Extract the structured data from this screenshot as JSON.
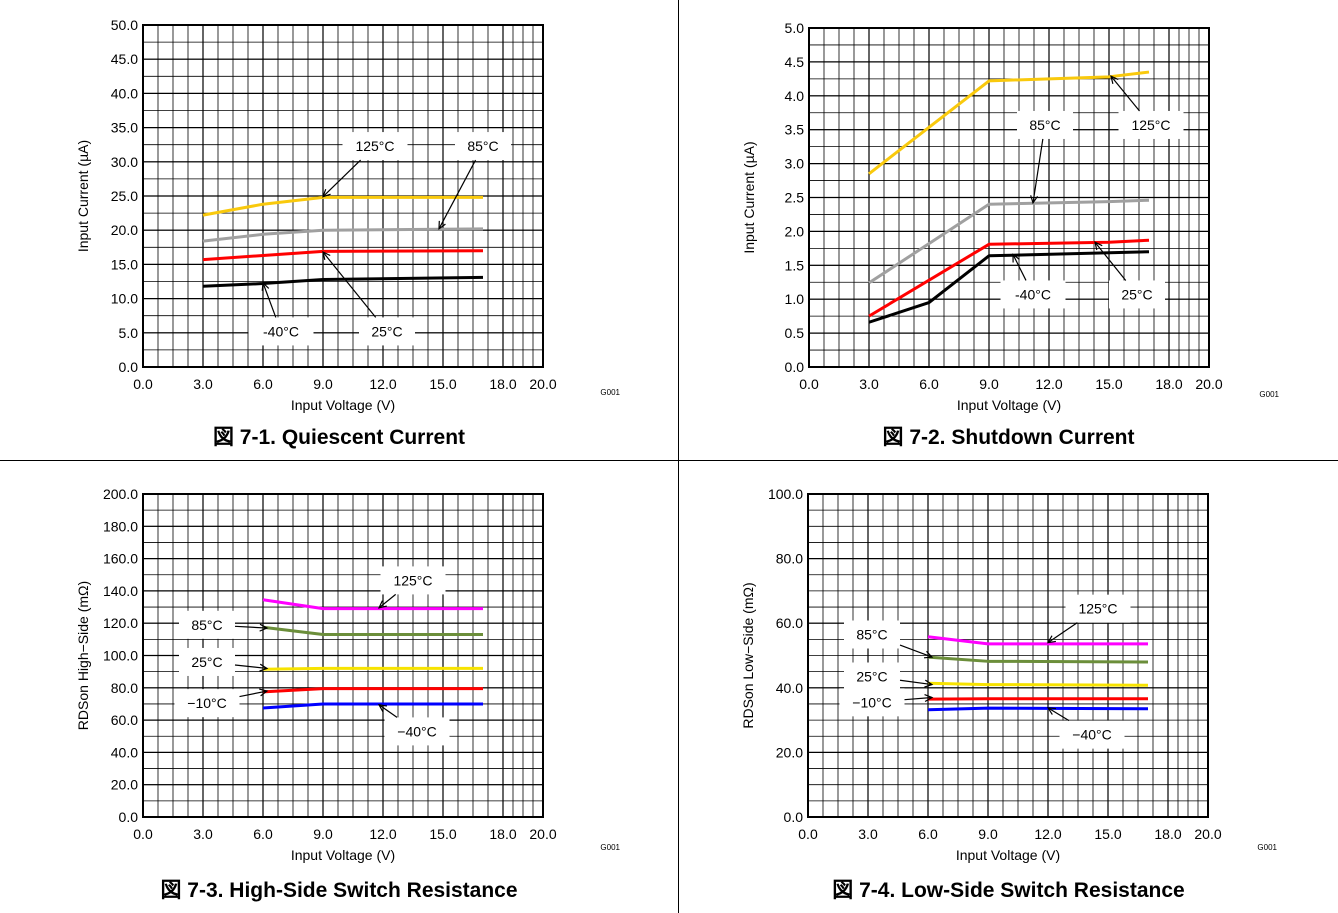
{
  "charts": [
    {
      "caption": "図 7-1. Quiescent Current",
      "chart_data": {
        "type": "line",
        "xlabel": "Input Voltage (V)",
        "ylabel": "Input Current (µA)",
        "code": "G001",
        "xlim": [
          0,
          20
        ],
        "ylim": [
          0,
          50
        ],
        "xticks": [
          "0.0",
          "3.0",
          "6.0",
          "9.0",
          "12.0",
          "15.0",
          "18.0",
          "20.0"
        ],
        "xtick_values": [
          0,
          3,
          6,
          9,
          12,
          15,
          18,
          20
        ],
        "yticks": [
          "0.0",
          "5.0",
          "10.0",
          "15.0",
          "20.0",
          "25.0",
          "30.0",
          "35.0",
          "40.0",
          "45.0",
          "50.0"
        ],
        "ytick_values": [
          0,
          5,
          10,
          15,
          20,
          25,
          30,
          35,
          40,
          45,
          50
        ],
        "grid": true,
        "series": [
          {
            "name": "125°C",
            "color": "#f9c90c",
            "x": [
              3,
              6,
              9,
              17
            ],
            "y": [
              22.2,
              23.8,
              24.8,
              24.8
            ]
          },
          {
            "name": "85°C",
            "color": "#a0a0a0",
            "x": [
              3,
              6,
              9,
              17
            ],
            "y": [
              18.4,
              19.4,
              20.0,
              20.2
            ]
          },
          {
            "name": "25°C",
            "color": "#ff0000",
            "x": [
              3,
              6,
              9,
              17
            ],
            "y": [
              15.7,
              16.3,
              16.9,
              17.0
            ]
          },
          {
            "name": "-40°C",
            "color": "#000000",
            "x": [
              3,
              6,
              9,
              17
            ],
            "y": [
              11.8,
              12.2,
              12.8,
              13.1
            ]
          }
        ],
        "annotations": [
          {
            "text": "125°C",
            "label_x": 11.6,
            "label_y": 32.3,
            "arrow_x": 9.0,
            "arrow_y": 24.9
          },
          {
            "text": "85°C",
            "label_x": 17.0,
            "label_y": 32.3,
            "arrow_x": 14.8,
            "arrow_y": 20.2
          },
          {
            "text": "-40°C",
            "label_x": 6.9,
            "label_y": 5.2,
            "arrow_x": 6.0,
            "arrow_y": 12.3
          },
          {
            "text": "25°C",
            "label_x": 12.2,
            "label_y": 5.2,
            "arrow_x": 9.0,
            "arrow_y": 16.8
          }
        ]
      }
    },
    {
      "caption": "図 7-2. Shutdown Current",
      "chart_data": {
        "type": "line",
        "xlabel": "Input Voltage (V)",
        "ylabel": "Input Current (µA)",
        "code": "G001",
        "xlim": [
          0,
          20
        ],
        "ylim": [
          0,
          5
        ],
        "xticks": [
          "0.0",
          "3.0",
          "6.0",
          "9.0",
          "12.0",
          "15.0",
          "18.0",
          "20.0"
        ],
        "xtick_values": [
          0,
          3,
          6,
          9,
          12,
          15,
          18,
          20
        ],
        "yticks": [
          "0.0",
          "0.5",
          "1.0",
          "1.5",
          "2.0",
          "2.5",
          "3.0",
          "3.5",
          "4.0",
          "4.5",
          "5.0"
        ],
        "ytick_values": [
          0,
          0.5,
          1,
          1.5,
          2,
          2.5,
          3,
          3.5,
          4,
          4.5,
          5
        ],
        "grid": true,
        "series": [
          {
            "name": "125°C",
            "color": "#f9c90c",
            "x": [
              3,
              9,
              15,
              17
            ],
            "y": [
              2.85,
              4.22,
              4.28,
              4.35
            ]
          },
          {
            "name": "85°C",
            "color": "#a0a0a0",
            "x": [
              3,
              9,
              15,
              17
            ],
            "y": [
              1.24,
              2.4,
              2.44,
              2.46
            ]
          },
          {
            "name": "25°C",
            "color": "#ff0000",
            "x": [
              3,
              9,
              15,
              17
            ],
            "y": [
              0.75,
              1.81,
              1.84,
              1.87
            ]
          },
          {
            "name": "-40°C",
            "color": "#000000",
            "x": [
              3,
              6,
              9,
              17
            ],
            "y": [
              0.66,
              0.95,
              1.64,
              1.7
            ]
          }
        ],
        "annotations": [
          {
            "text": "85°C",
            "label_x": 11.8,
            "label_y": 3.57,
            "arrow_x": 11.2,
            "arrow_y": 2.42
          },
          {
            "text": "125°C",
            "label_x": 17.1,
            "label_y": 3.57,
            "arrow_x": 15.1,
            "arrow_y": 4.29
          },
          {
            "text": "-40°C",
            "label_x": 11.2,
            "label_y": 1.07,
            "arrow_x": 10.2,
            "arrow_y": 1.66
          },
          {
            "text": "25°C",
            "label_x": 16.4,
            "label_y": 1.07,
            "arrow_x": 14.3,
            "arrow_y": 1.84
          }
        ]
      }
    },
    {
      "caption": "図 7-3. High-Side Switch Resistance",
      "chart_data": {
        "type": "line",
        "xlabel": "Input Voltage (V)",
        "ylabel": "RDSon High−Side (mΩ)",
        "code": "G001",
        "xlim": [
          0,
          20
        ],
        "ylim": [
          0,
          200
        ],
        "xticks": [
          "0.0",
          "3.0",
          "6.0",
          "9.0",
          "12.0",
          "15.0",
          "18.0",
          "20.0"
        ],
        "xtick_values": [
          0,
          3,
          6,
          9,
          12,
          15,
          18,
          20
        ],
        "yticks": [
          "0.0",
          "20.0",
          "40.0",
          "60.0",
          "80.0",
          "100.0",
          "120.0",
          "140.0",
          "160.0",
          "180.0",
          "200.0"
        ],
        "ytick_values": [
          0,
          20,
          40,
          60,
          80,
          100,
          120,
          140,
          160,
          180,
          200
        ],
        "grid": true,
        "series": [
          {
            "name": "125°C",
            "color": "#ff00ff",
            "x": [
              6,
              9,
              17
            ],
            "y": [
              134.5,
              129,
              129
            ]
          },
          {
            "name": "85°C",
            "color": "#6b8e3a",
            "x": [
              6,
              9,
              17
            ],
            "y": [
              117.5,
              113,
              113
            ]
          },
          {
            "name": "25°C",
            "color": "#f7e300",
            "x": [
              6,
              9,
              17
            ],
            "y": [
              91.5,
              92,
              92
            ]
          },
          {
            "name": "−10°C",
            "color": "#ff0000",
            "x": [
              6,
              9,
              17
            ],
            "y": [
              77.5,
              79.5,
              79.5
            ]
          },
          {
            "name": "−40°C",
            "color": "#0000ff",
            "x": [
              6,
              9,
              17
            ],
            "y": [
              67.5,
              70,
              70
            ]
          }
        ],
        "annotations": [
          {
            "text": "125°C",
            "label_x": 13.5,
            "label_y": 146.5,
            "arrow_x": 11.8,
            "arrow_y": 129.5
          },
          {
            "text": "85°C",
            "label_x": 3.2,
            "label_y": 119,
            "arrow_x": 6.2,
            "arrow_y": 117
          },
          {
            "text": "25°C",
            "label_x": 3.2,
            "label_y": 96,
            "arrow_x": 6.2,
            "arrow_y": 92
          },
          {
            "text": "−10°C",
            "label_x": 3.2,
            "label_y": 70.5,
            "arrow_x": 6.2,
            "arrow_y": 78
          },
          {
            "text": "−40°C",
            "label_x": 13.7,
            "label_y": 53,
            "arrow_x": 11.8,
            "arrow_y": 69.5
          }
        ]
      }
    },
    {
      "caption": "図 7-4. Low-Side Switch Resistance",
      "chart_data": {
        "type": "line",
        "xlabel": "Input Voltage (V)",
        "ylabel": "RDSon Low−Side (mΩ)",
        "code": "G001",
        "xlim": [
          0,
          20
        ],
        "ylim": [
          0,
          100
        ],
        "xticks": [
          "0.0",
          "3.0",
          "6.0",
          "9.0",
          "12.0",
          "15.0",
          "18.0",
          "20.0"
        ],
        "xtick_values": [
          0,
          3,
          6,
          9,
          12,
          15,
          18,
          20
        ],
        "yticks": [
          "0.0",
          "20.0",
          "40.0",
          "60.0",
          "80.0",
          "100.0"
        ],
        "ytick_values": [
          0,
          20,
          40,
          60,
          80,
          100
        ],
        "grid": true,
        "series": [
          {
            "name": "125°C",
            "color": "#ff00ff",
            "x": [
              6,
              9,
              17
            ],
            "y": [
              55.8,
              53.6,
              53.6
            ]
          },
          {
            "name": "85°C",
            "color": "#6b8e3a",
            "x": [
              6,
              9,
              17
            ],
            "y": [
              49.5,
              48.2,
              48.0
            ]
          },
          {
            "name": "25°C",
            "color": "#f7e300",
            "x": [
              6,
              9,
              17
            ],
            "y": [
              41.4,
              41.0,
              40.8
            ]
          },
          {
            "name": "−10°C",
            "color": "#ff0000",
            "x": [
              6,
              9,
              17
            ],
            "y": [
              36.5,
              36.6,
              36.6
            ]
          },
          {
            "name": "−40°C",
            "color": "#0000ff",
            "x": [
              6,
              9,
              17
            ],
            "y": [
              33.2,
              33.7,
              33.5
            ]
          }
        ],
        "annotations": [
          {
            "text": "125°C",
            "label_x": 14.5,
            "label_y": 64.5,
            "arrow_x": 12.0,
            "arrow_y": 54.0
          },
          {
            "text": "85°C",
            "label_x": 3.2,
            "label_y": 56.5,
            "arrow_x": 6.2,
            "arrow_y": 49.5
          },
          {
            "text": "25°C",
            "label_x": 3.2,
            "label_y": 43.5,
            "arrow_x": 6.2,
            "arrow_y": 41.0
          },
          {
            "text": "−10°C",
            "label_x": 3.2,
            "label_y": 35.5,
            "arrow_x": 6.2,
            "arrow_y": 37.0
          },
          {
            "text": "−40°C",
            "label_x": 14.2,
            "label_y": 25.5,
            "arrow_x": 12.0,
            "arrow_y": 33.8
          }
        ]
      }
    }
  ]
}
